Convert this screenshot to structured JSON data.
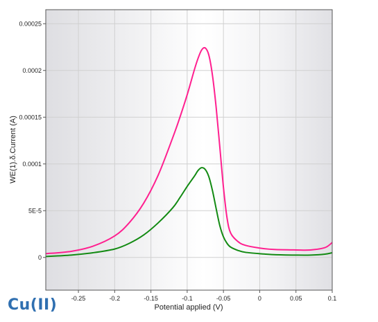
{
  "caption": "Cu(II)",
  "chart_data": {
    "type": "line",
    "title": "",
    "xlabel": "Potential applied (V)",
    "ylabel": "WE(1).δ.Current (A)",
    "xlim": [
      -0.295,
      0.1
    ],
    "ylim": [
      -3.5e-05,
      0.000265
    ],
    "x_ticks": [
      -0.25,
      -0.2,
      -0.15,
      -0.1,
      -0.05,
      0,
      0.05,
      0.1
    ],
    "x_tick_labels": [
      "-0.25",
      "-0.2",
      "-0.15",
      "-0.1",
      "-0.05",
      "0",
      "0.05",
      "0.1"
    ],
    "y_ticks": [
      0,
      5e-05,
      0.0001,
      0.00015,
      0.0002,
      0.00025
    ],
    "y_tick_labels": [
      "0",
      "5E-5",
      "0.0001",
      "0.00015",
      "0.0002",
      "0.00025"
    ],
    "grid": true,
    "legend": "none",
    "colors": {
      "series_1": "#ff1f8f",
      "series_2": "#128a12",
      "grid": "#d0d0d0",
      "caption": "#2f6fb0"
    },
    "series": [
      {
        "x": [
          -0.295,
          -0.26,
          -0.23,
          -0.2,
          -0.18,
          -0.16,
          -0.14,
          -0.12,
          -0.11,
          -0.1,
          -0.09,
          -0.085,
          -0.08,
          -0.075,
          -0.07,
          -0.065,
          -0.06,
          -0.055,
          -0.05,
          -0.045,
          -0.04,
          -0.03,
          -0.02,
          0,
          0.02,
          0.05,
          0.07,
          0.09,
          0.1
        ],
        "y": [
          4e-06,
          6.5e-06,
          1.2e-05,
          2.3e-05,
          3.7e-05,
          5.8e-05,
          8.8e-05,
          0.000128,
          0.00015,
          0.000174,
          0.000201,
          0.000213,
          0.000222,
          0.000224,
          0.000216,
          0.000194,
          0.00016,
          0.000118,
          7.5e-05,
          4.2e-05,
          2.6e-05,
          1.7e-05,
          1.3e-05,
          1e-05,
          8.5e-06,
          8e-06,
          8e-06,
          1.05e-05,
          1.6e-05
        ]
      },
      {
        "x": [
          -0.295,
          -0.26,
          -0.23,
          -0.2,
          -0.18,
          -0.16,
          -0.14,
          -0.12,
          -0.11,
          -0.1,
          -0.09,
          -0.085,
          -0.08,
          -0.075,
          -0.07,
          -0.065,
          -0.06,
          -0.055,
          -0.05,
          -0.045,
          -0.04,
          -0.03,
          -0.02,
          0,
          0.02,
          0.05,
          0.07,
          0.09,
          0.1
        ],
        "y": [
          1e-06,
          2.5e-06,
          5e-06,
          9e-06,
          1.5e-05,
          2.4e-05,
          3.7e-05,
          5.3e-05,
          6.4e-05,
          7.6e-05,
          8.7e-05,
          9.3e-05,
          9.6e-05,
          9.4e-05,
          8.6e-05,
          7.1e-05,
          5.2e-05,
          3.4e-05,
          2.2e-05,
          1.5e-05,
          1.1e-05,
          7.5e-06,
          5.5e-06,
          4e-06,
          3e-06,
          2.5e-06,
          2.5e-06,
          3.5e-06,
          5e-06
        ]
      }
    ]
  }
}
